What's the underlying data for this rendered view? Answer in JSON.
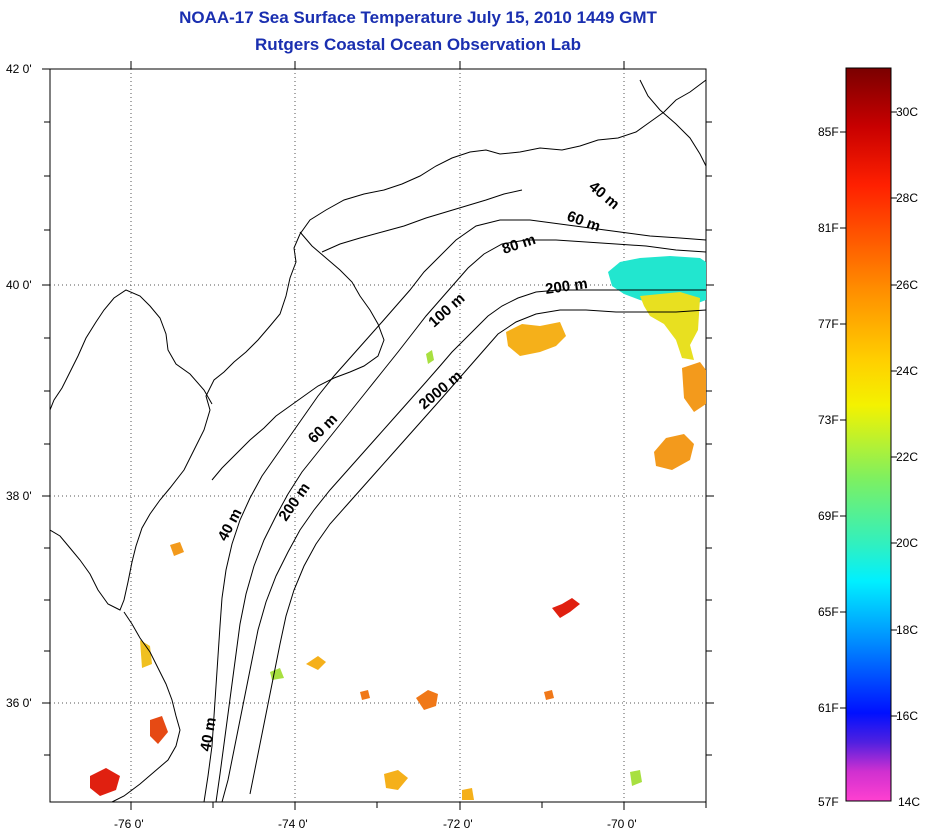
{
  "title": "NOAA-17 Sea Surface Temperature July 15, 2010 1449 GMT",
  "subtitle": "Rutgers Coastal Ocean Observation Lab",
  "y_ticks": [
    "42 0'",
    "40 0'",
    "38 0'",
    "36 0'"
  ],
  "x_ticks": [
    "-76 0'",
    "-74 0'",
    "-72 0'",
    "-70 0'"
  ],
  "depth_labels": [
    "40 m",
    "60 m",
    "80 m",
    "200 m",
    "100 m",
    "2000 m",
    "60 m",
    "40 m",
    "200 m",
    "40 m"
  ],
  "colorbar": {
    "fahrenheit": [
      "85F",
      "81F",
      "77F",
      "73F",
      "69F",
      "65F",
      "61F",
      "57F"
    ],
    "celsius": [
      "30C",
      "28C",
      "26C",
      "24C",
      "22C",
      "20C",
      "18C",
      "16C",
      "14C"
    ]
  },
  "colors": {
    "title": "#1a2fb0",
    "warm": "#f39a1c",
    "cool": "#22e6cf",
    "hot": "#e02010"
  }
}
